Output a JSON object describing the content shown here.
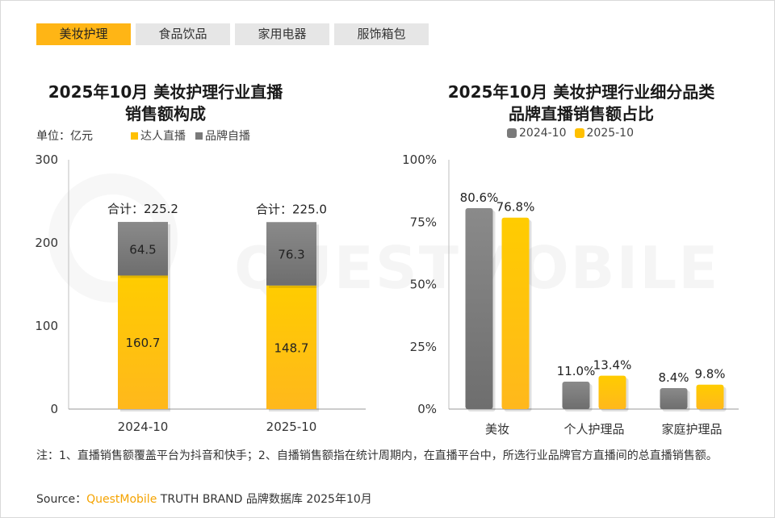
{
  "tabs": [
    {
      "label": "美妆护理",
      "active": true
    },
    {
      "label": "食品饮品",
      "active": false
    },
    {
      "label": "家用电器",
      "active": false
    },
    {
      "label": "服饰箱包",
      "active": false
    }
  ],
  "left_chart": {
    "title_line1": "2025年10月 美妆护理行业直播",
    "title_line2": "销售额构成",
    "unit": "单位：亿元"
  },
  "right_chart": {
    "title_line1": "2025年10月 美妆护理行业细分品类",
    "title_line2": "品牌直播销售额占比"
  },
  "watermark": "QUESTMOBILE",
  "footnote": "注：1、直播销售额覆盖平台为抖音和快手；2、自播销售额指在统计周期内，在直播平台中，所选行业品牌官方直播间的总直播销售额。",
  "source": {
    "prefix": "Source：",
    "brand": "QuestMobile",
    "suffix": " TRUTH BRAND 品牌数据库 2025年10月"
  },
  "colors": {
    "yellow": "#ffc000",
    "gray": "#7a7a7a",
    "tab_active": "#ffb515"
  },
  "chart_data": [
    {
      "type": "bar",
      "stacked": true,
      "categories": [
        "2024-10",
        "2025-10"
      ],
      "series": [
        {
          "name": "达人直播",
          "values": [
            160.7,
            148.7
          ],
          "color": "#ffc000"
        },
        {
          "name": "品牌自播",
          "values": [
            64.5,
            76.3
          ],
          "color": "#7a7a7a"
        }
      ],
      "totals": [
        225.2,
        225.0
      ],
      "total_prefix": "合计：",
      "ylim": [
        0,
        300
      ],
      "yticks": [
        0,
        100,
        200,
        300
      ],
      "ylabel": "单位：亿元",
      "legend": "top"
    },
    {
      "type": "bar",
      "categories": [
        "美妆",
        "个人护理品",
        "家庭护理品"
      ],
      "series": [
        {
          "name": "2024-10",
          "values": [
            80.6,
            11.0,
            8.4
          ],
          "color": "#7a7a7a"
        },
        {
          "name": "2025-10",
          "values": [
            76.8,
            13.4,
            9.8
          ],
          "color": "#ffc000"
        }
      ],
      "ylim": [
        0,
        100
      ],
      "yticks": [
        "0%",
        "25%",
        "50%",
        "75%",
        "100%"
      ],
      "legend": "top"
    }
  ]
}
